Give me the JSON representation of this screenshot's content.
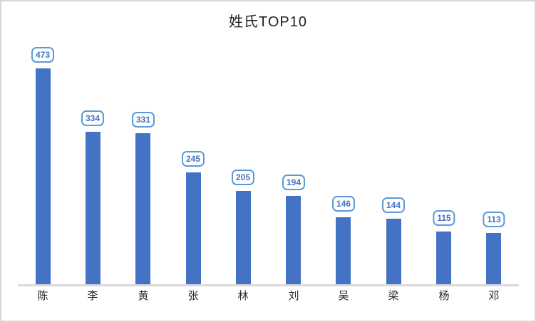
{
  "chart_data": {
    "type": "bar",
    "title": "姓氏TOP10",
    "categories": [
      "陈",
      "李",
      "黄",
      "张",
      "林",
      "刘",
      "吴",
      "梁",
      "杨",
      "邓"
    ],
    "values": [
      473,
      334,
      331,
      245,
      205,
      194,
      146,
      144,
      115,
      113
    ],
    "xlabel": "",
    "ylabel": "",
    "ylim": [
      0,
      500
    ],
    "grid": false,
    "legend_position": "none",
    "data_label_style": "callout-rounded-box",
    "colors": {
      "bar_fill": "#4472c4",
      "callout_border": "#5b9bd5",
      "callout_text": "#4472c4",
      "axis_line": "#d9d9d9",
      "title_text": "#1f1f1f",
      "category_text": "#262626",
      "frame_border": "#d6d6d6",
      "background": "#ffffff"
    }
  }
}
